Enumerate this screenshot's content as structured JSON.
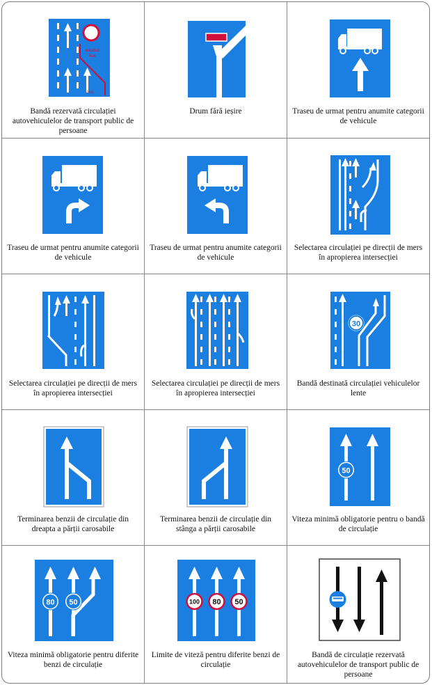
{
  "colors": {
    "sign_blue": "#1a7fe0",
    "white": "#ffffff",
    "red": "#d0103a",
    "grid": "#8a8a8a"
  },
  "signs": [
    {
      "caption": "Bandă rezervată circulației autovehiculelor de transport public de persoane",
      "icon": "bus-lane-sign-icon",
      "text": [
        "autobuz",
        "bus",
        "bus"
      ]
    },
    {
      "caption": "Drum fără ieșire",
      "icon": "dead-end-road-sign-icon"
    },
    {
      "caption": "Traseu de urmat pentru anumite categorii de vehicule",
      "icon": "truck-route-straight-sign-icon"
    },
    {
      "caption": "Traseu de urmat pentru anumite categorii de vehicule",
      "icon": "truck-route-right-sign-icon"
    },
    {
      "caption": "Traseu de urmat pentru anumite categorii de vehicule",
      "icon": "truck-route-left-sign-icon"
    },
    {
      "caption": "Selectarea circulației pe direcții de mers în apropierea intersecției",
      "icon": "lane-selection-sign-icon"
    },
    {
      "caption": "Selectarea circulației pe direcții de mers în apropierea intersecției",
      "icon": "lane-selection-sign-icon"
    },
    {
      "caption": "Selectarea circulației pe direcții de mers în apropierea intersecției",
      "icon": "lane-selection-sign-icon"
    },
    {
      "caption": "Bandă destinată circulației vehiculelor lente",
      "icon": "slow-vehicles-lane-sign-icon",
      "text": [
        "30"
      ]
    },
    {
      "caption": "Terminarea benzii de circulație din dreapta a părții carosabile",
      "icon": "right-lane-ends-sign-icon"
    },
    {
      "caption": "Terminarea benzii de circulație din stânga a părții carosabile",
      "icon": "left-lane-ends-sign-icon"
    },
    {
      "caption": "Viteza minimă obligatorie pentru o bandă de circulație",
      "icon": "minimum-speed-lane-sign-icon",
      "text": [
        "50"
      ]
    },
    {
      "caption": "Viteza minimă obligatorie pentru diferite benzi de circulație",
      "icon": "minimum-speed-lanes-sign-icon",
      "text": [
        "80",
        "50"
      ]
    },
    {
      "caption": "Limite de viteză pentru diferite benzi de circulație",
      "icon": "speed-limit-lanes-sign-icon",
      "text": [
        "100",
        "80",
        "50"
      ]
    },
    {
      "caption": "Bandă de circulație rezervată autovehiculelor de transport public de persoane",
      "icon": "contraflow-bus-lane-sign-icon"
    }
  ]
}
